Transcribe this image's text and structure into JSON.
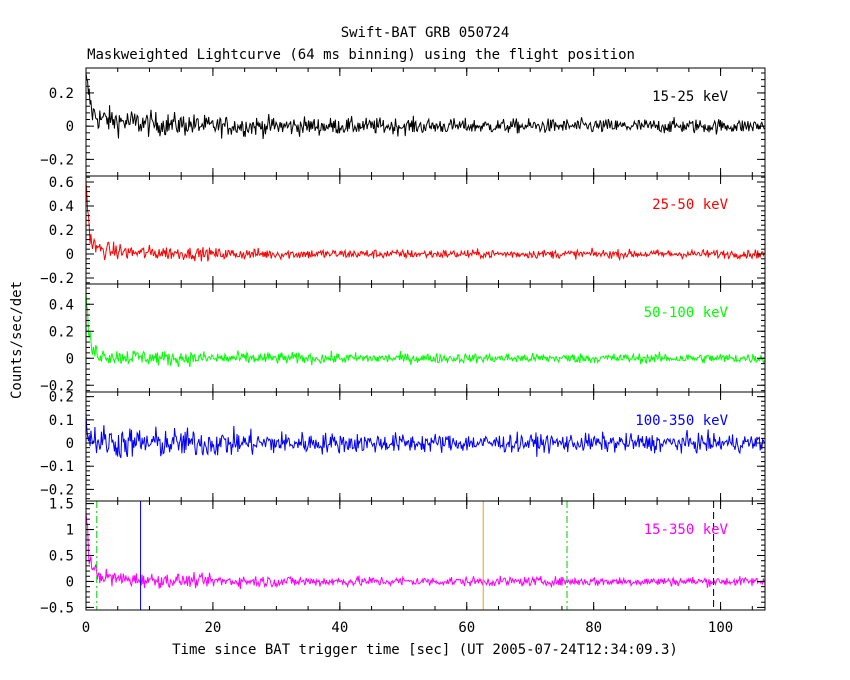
{
  "header": {
    "title": "Swift-BAT GRB 050724",
    "subtitle": "Maskweighted Lightcurve (64 ms binning) using the flight position"
  },
  "axes": {
    "ylabel": "Counts/sec/det",
    "xlabel": "Time since BAT trigger time [sec] (UT 2005-07-24T12:34:09.3)"
  },
  "chart_data": {
    "type": "line",
    "x_range": [
      0,
      107
    ],
    "x_ticks": [
      0,
      20,
      40,
      60,
      80,
      100
    ],
    "bin_seconds": 0.064,
    "panels": [
      {
        "band": "15-25 keV",
        "color": "#000000",
        "ylim": [
          -0.3,
          0.35
        ],
        "y_ticks": [
          {
            "v": 0.2,
            "label": "0.2"
          },
          {
            "v": 0,
            "label": "0"
          },
          {
            "v": -0.2,
            "label": "−0.2"
          }
        ],
        "x": [
          0,
          0.5,
          1,
          2,
          3,
          5,
          8,
          12,
          16,
          20,
          30,
          40,
          50,
          60,
          70,
          80,
          90,
          100,
          107
        ],
        "y": [
          0.28,
          0.18,
          0.08,
          0.05,
          0.04,
          0.03,
          0.02,
          0.01,
          0.01,
          0.0,
          0.0,
          0.0,
          0.0,
          0.0,
          0.0,
          0.0,
          0.0,
          0.0,
          0.0
        ],
        "noise": [
          0.04,
          0.04,
          0.04,
          0.04,
          0.04,
          0.04,
          0.04,
          0.035,
          0.035,
          0.03,
          0.03,
          0.025,
          0.025,
          0.022,
          0.022,
          0.022,
          0.022,
          0.022,
          0.022
        ]
      },
      {
        "band": "25-50 keV",
        "color": "#ff0000",
        "ylim": [
          -0.25,
          0.65
        ],
        "y_ticks": [
          {
            "v": 0.6,
            "label": "0.6"
          },
          {
            "v": 0.4,
            "label": "0.4"
          },
          {
            "v": 0.2,
            "label": "0.2"
          },
          {
            "v": 0,
            "label": "0"
          },
          {
            "v": -0.2,
            "label": "−0.2"
          }
        ],
        "x": [
          0,
          0.2,
          0.5,
          1,
          2,
          3,
          5,
          8,
          12,
          20,
          30,
          40,
          60,
          80,
          100,
          107
        ],
        "y": [
          0.6,
          0.45,
          0.2,
          0.08,
          0.04,
          0.03,
          0.02,
          0.01,
          0.01,
          0.0,
          0.0,
          0.0,
          0.0,
          0.0,
          0.0,
          0.0
        ],
        "noise": [
          0.04,
          0.04,
          0.04,
          0.04,
          0.035,
          0.035,
          0.035,
          0.03,
          0.03,
          0.025,
          0.022,
          0.02,
          0.018,
          0.018,
          0.018,
          0.018
        ]
      },
      {
        "band": "50-100 keV",
        "color": "#00ff00",
        "ylim": [
          -0.25,
          0.55
        ],
        "y_ticks": [
          {
            "v": 0.4,
            "label": "0.4"
          },
          {
            "v": 0.2,
            "label": "0.2"
          },
          {
            "v": 0,
            "label": "0"
          },
          {
            "v": -0.2,
            "label": "−0.2"
          }
        ],
        "x": [
          0,
          0.2,
          0.5,
          1,
          2,
          3,
          5,
          8,
          12,
          20,
          30,
          40,
          60,
          80,
          100,
          107
        ],
        "y": [
          0.5,
          0.35,
          0.15,
          0.06,
          0.03,
          0.02,
          0.01,
          0.01,
          0.0,
          0.0,
          0.0,
          0.0,
          0.0,
          0.0,
          0.0,
          0.0
        ],
        "noise": [
          0.035,
          0.035,
          0.035,
          0.035,
          0.03,
          0.03,
          0.03,
          0.03,
          0.028,
          0.025,
          0.022,
          0.02,
          0.018,
          0.018,
          0.018,
          0.018
        ]
      },
      {
        "band": "100-350 keV",
        "color": "#0000ff",
        "ylim": [
          -0.25,
          0.22
        ],
        "y_ticks": [
          {
            "v": 0.2,
            "label": "0.2"
          },
          {
            "v": 0.1,
            "label": "0.1"
          },
          {
            "v": 0,
            "label": "0"
          },
          {
            "v": -0.1,
            "label": "−0.1"
          },
          {
            "v": -0.2,
            "label": "−0.2"
          }
        ],
        "x": [
          0,
          0.3,
          1,
          2,
          5,
          10,
          20,
          30,
          40,
          60,
          80,
          100,
          107
        ],
        "y": [
          0.08,
          0.04,
          0.02,
          0.01,
          0.0,
          0.0,
          0.0,
          0.0,
          0.0,
          0.0,
          0.0,
          0.0,
          0.0
        ],
        "noise": [
          0.04,
          0.04,
          0.035,
          0.035,
          0.035,
          0.033,
          0.03,
          0.025,
          0.022,
          0.02,
          0.02,
          0.02,
          0.02
        ]
      },
      {
        "band": "15-350 keV",
        "color": "#ff00ff",
        "ylim": [
          -0.55,
          1.55
        ],
        "y_ticks": [
          {
            "v": 1.5,
            "label": "1.5"
          },
          {
            "v": 1,
            "label": "1"
          },
          {
            "v": 0.5,
            "label": "0.5"
          },
          {
            "v": 0,
            "label": "0"
          },
          {
            "v": -0.5,
            "label": "−0.5"
          }
        ],
        "x": [
          0,
          0.2,
          0.5,
          1,
          2,
          3,
          5,
          8,
          12,
          20,
          30,
          40,
          60,
          80,
          100,
          107
        ],
        "y": [
          1.4,
          1.0,
          0.5,
          0.25,
          0.12,
          0.08,
          0.05,
          0.03,
          0.02,
          0.01,
          0.0,
          0.0,
          0.0,
          0.0,
          0.0,
          0.0
        ],
        "noise": [
          0.09,
          0.09,
          0.09,
          0.09,
          0.08,
          0.08,
          0.08,
          0.07,
          0.07,
          0.06,
          0.055,
          0.05,
          0.045,
          0.045,
          0.045,
          0.045
        ]
      }
    ],
    "markers": [
      {
        "x": 1.7,
        "color": "#00cc00",
        "dash": "7,3,2,3"
      },
      {
        "x": 8.6,
        "color": "#0000ff",
        "dash": ""
      },
      {
        "x": 62.6,
        "color": "#ff9900",
        "dash": ""
      },
      {
        "x": 75.8,
        "color": "#00cc00",
        "dash": "7,3,2,3"
      },
      {
        "x": 98.9,
        "color": "#000000",
        "dash": "7,4"
      }
    ]
  }
}
